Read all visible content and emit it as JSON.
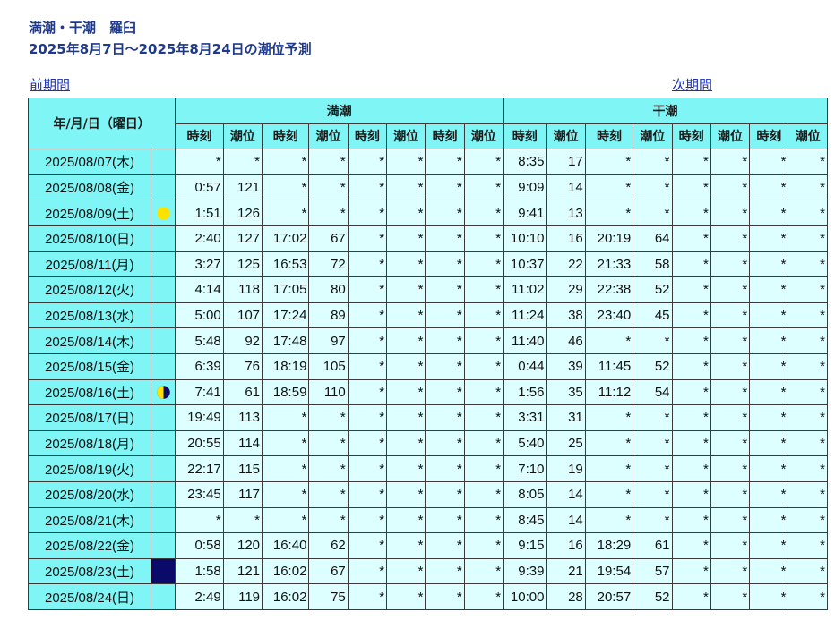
{
  "header": {
    "title_line1": "満潮・干潮　羅臼",
    "title_line2": "2025年8月7日～2025年8月24日の潮位予測"
  },
  "nav": {
    "prev_label": "前期間",
    "next_label": "次期間"
  },
  "table": {
    "date_header": "年/月/日（曜日）",
    "high_header": "満潮",
    "low_header": "干潮",
    "time_label": "時刻",
    "level_label": "潮位",
    "rows": [
      {
        "date": "2025/08/07(木)",
        "moon": "",
        "high": [
          "*",
          "*",
          "*",
          "*",
          "*",
          "*",
          "*",
          "*"
        ],
        "low": [
          "8:35",
          "17",
          "*",
          "*",
          "*",
          "*",
          "*",
          "*"
        ]
      },
      {
        "date": "2025/08/08(金)",
        "moon": "",
        "high": [
          "0:57",
          "121",
          "*",
          "*",
          "*",
          "*",
          "*",
          "*"
        ],
        "low": [
          "9:09",
          "14",
          "*",
          "*",
          "*",
          "*",
          "*",
          "*"
        ]
      },
      {
        "date": "2025/08/09(土)",
        "moon": "full",
        "high": [
          "1:51",
          "126",
          "*",
          "*",
          "*",
          "*",
          "*",
          "*"
        ],
        "low": [
          "9:41",
          "13",
          "*",
          "*",
          "*",
          "*",
          "*",
          "*"
        ]
      },
      {
        "date": "2025/08/10(日)",
        "moon": "",
        "high": [
          "2:40",
          "127",
          "17:02",
          "67",
          "*",
          "*",
          "*",
          "*"
        ],
        "low": [
          "10:10",
          "16",
          "20:19",
          "64",
          "*",
          "*",
          "*",
          "*"
        ]
      },
      {
        "date": "2025/08/11(月)",
        "moon": "",
        "high": [
          "3:27",
          "125",
          "16:53",
          "72",
          "*",
          "*",
          "*",
          "*"
        ],
        "low": [
          "10:37",
          "22",
          "21:33",
          "58",
          "*",
          "*",
          "*",
          "*"
        ]
      },
      {
        "date": "2025/08/12(火)",
        "moon": "",
        "high": [
          "4:14",
          "118",
          "17:05",
          "80",
          "*",
          "*",
          "*",
          "*"
        ],
        "low": [
          "11:02",
          "29",
          "22:38",
          "52",
          "*",
          "*",
          "*",
          "*"
        ]
      },
      {
        "date": "2025/08/13(水)",
        "moon": "",
        "high": [
          "5:00",
          "107",
          "17:24",
          "89",
          "*",
          "*",
          "*",
          "*"
        ],
        "low": [
          "11:24",
          "38",
          "23:40",
          "45",
          "*",
          "*",
          "*",
          "*"
        ]
      },
      {
        "date": "2025/08/14(木)",
        "moon": "",
        "high": [
          "5:48",
          "92",
          "17:48",
          "97",
          "*",
          "*",
          "*",
          "*"
        ],
        "low": [
          "11:40",
          "46",
          "*",
          "*",
          "*",
          "*",
          "*",
          "*"
        ]
      },
      {
        "date": "2025/08/15(金)",
        "moon": "",
        "high": [
          "6:39",
          "76",
          "18:19",
          "105",
          "*",
          "*",
          "*",
          "*"
        ],
        "low": [
          "0:44",
          "39",
          "11:45",
          "52",
          "*",
          "*",
          "*",
          "*"
        ]
      },
      {
        "date": "2025/08/16(土)",
        "moon": "last-quarter",
        "high": [
          "7:41",
          "61",
          "18:59",
          "110",
          "*",
          "*",
          "*",
          "*"
        ],
        "low": [
          "1:56",
          "35",
          "11:12",
          "54",
          "*",
          "*",
          "*",
          "*"
        ]
      },
      {
        "date": "2025/08/17(日)",
        "moon": "",
        "high": [
          "19:49",
          "113",
          "*",
          "*",
          "*",
          "*",
          "*",
          "*"
        ],
        "low": [
          "3:31",
          "31",
          "*",
          "*",
          "*",
          "*",
          "*",
          "*"
        ]
      },
      {
        "date": "2025/08/18(月)",
        "moon": "",
        "high": [
          "20:55",
          "114",
          "*",
          "*",
          "*",
          "*",
          "*",
          "*"
        ],
        "low": [
          "5:40",
          "25",
          "*",
          "*",
          "*",
          "*",
          "*",
          "*"
        ]
      },
      {
        "date": "2025/08/19(火)",
        "moon": "",
        "high": [
          "22:17",
          "115",
          "*",
          "*",
          "*",
          "*",
          "*",
          "*"
        ],
        "low": [
          "7:10",
          "19",
          "*",
          "*",
          "*",
          "*",
          "*",
          "*"
        ]
      },
      {
        "date": "2025/08/20(水)",
        "moon": "",
        "high": [
          "23:45",
          "117",
          "*",
          "*",
          "*",
          "*",
          "*",
          "*"
        ],
        "low": [
          "8:05",
          "14",
          "*",
          "*",
          "*",
          "*",
          "*",
          "*"
        ]
      },
      {
        "date": "2025/08/21(木)",
        "moon": "",
        "high": [
          "*",
          "*",
          "*",
          "*",
          "*",
          "*",
          "*",
          "*"
        ],
        "low": [
          "8:45",
          "14",
          "*",
          "*",
          "*",
          "*",
          "*",
          "*"
        ]
      },
      {
        "date": "2025/08/22(金)",
        "moon": "",
        "high": [
          "0:58",
          "120",
          "16:40",
          "62",
          "*",
          "*",
          "*",
          "*"
        ],
        "low": [
          "9:15",
          "16",
          "18:29",
          "61",
          "*",
          "*",
          "*",
          "*"
        ]
      },
      {
        "date": "2025/08/23(土)",
        "moon": "new",
        "high": [
          "1:58",
          "121",
          "16:02",
          "67",
          "*",
          "*",
          "*",
          "*"
        ],
        "low": [
          "9:39",
          "21",
          "19:54",
          "57",
          "*",
          "*",
          "*",
          "*"
        ]
      },
      {
        "date": "2025/08/24(日)",
        "moon": "",
        "high": [
          "2:49",
          "119",
          "16:02",
          "75",
          "*",
          "*",
          "*",
          "*"
        ],
        "low": [
          "10:00",
          "28",
          "20:57",
          "52",
          "*",
          "*",
          "*",
          "*"
        ]
      }
    ]
  },
  "colors": {
    "header_bg": "#7ff5f5",
    "cell_bg": "#ddffff",
    "new_moon": "#0a0a6a",
    "moon_yellow": "#ffe100",
    "title_color": "#1f3a8a",
    "link_color": "#1c2fb0"
  }
}
